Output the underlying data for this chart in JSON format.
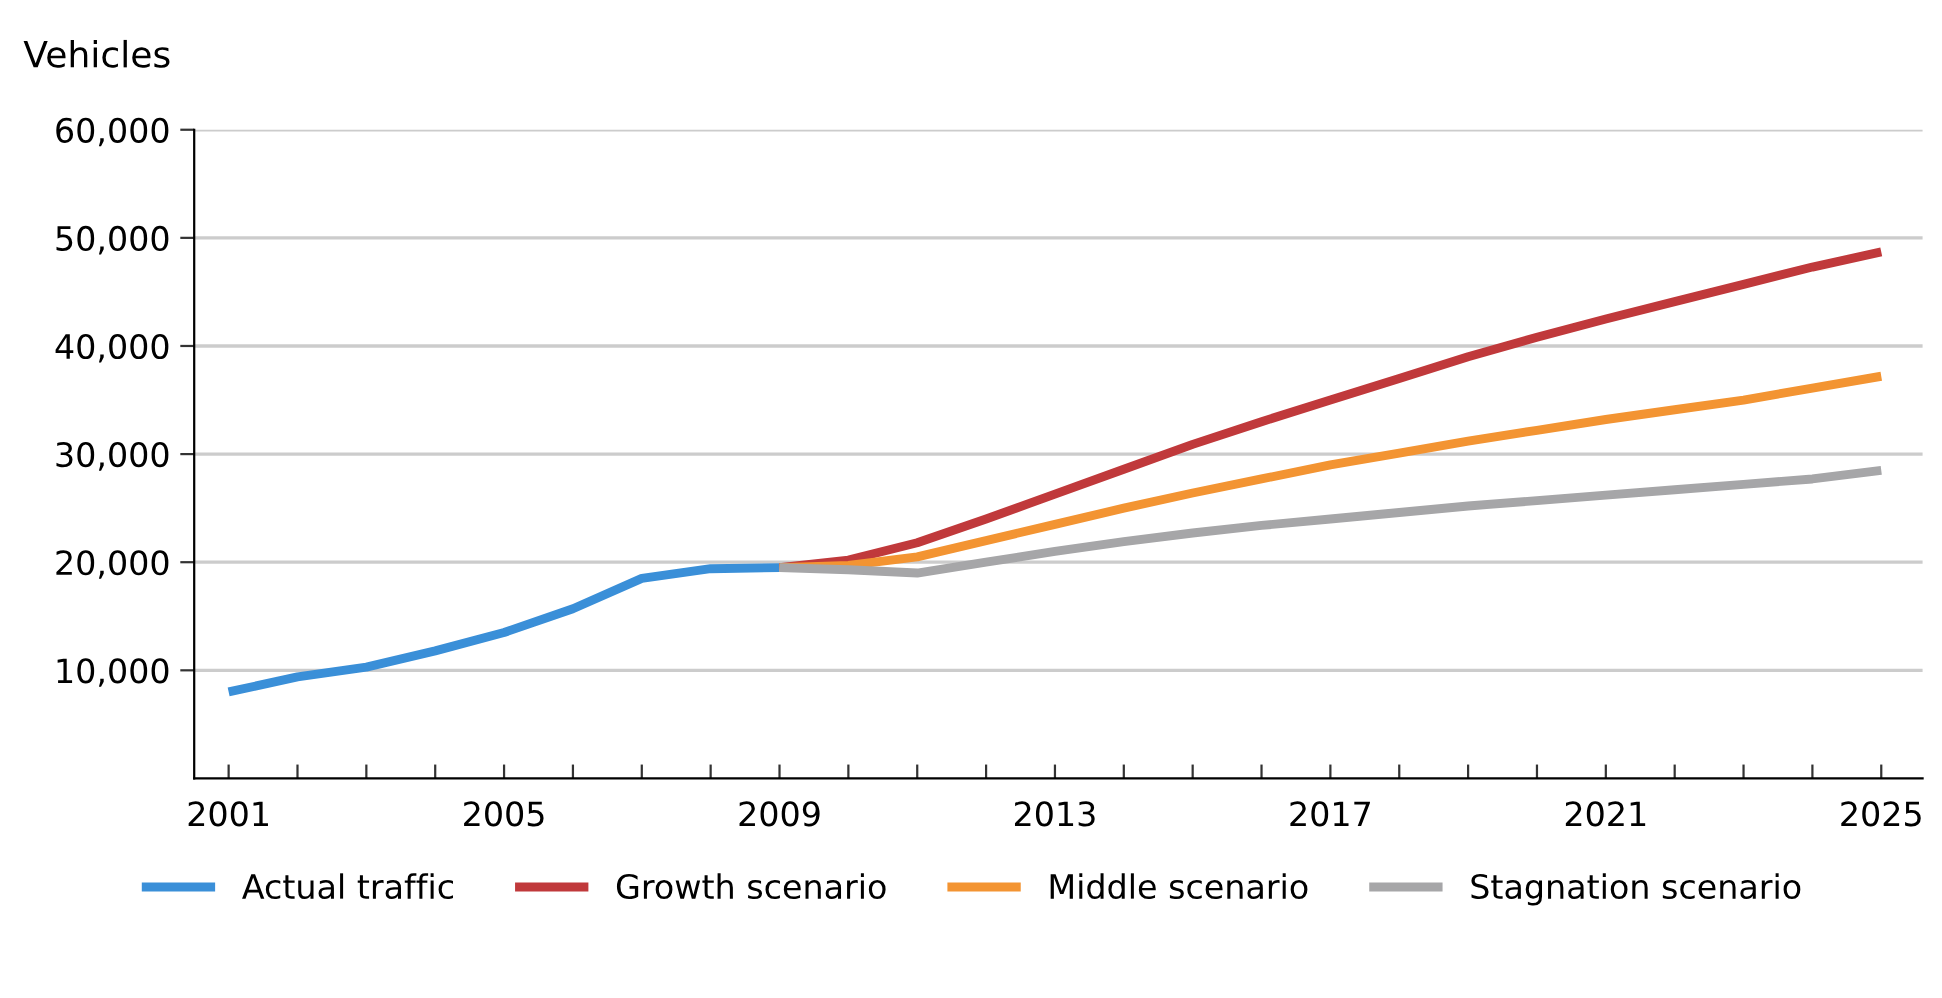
{
  "chart_data": {
    "type": "line",
    "ylabel": "Vehicles",
    "x": [
      2009,
      2010,
      2011,
      2012,
      2013,
      2014,
      2015,
      2016,
      2017,
      2018,
      2019,
      2020,
      2021,
      2022,
      2023,
      2024,
      2025
    ],
    "series": [
      {
        "name": "Actual traffic",
        "color": "#3a8fd8",
        "x": [
          2001,
          2002,
          2003,
          2004,
          2005,
          2006,
          2007,
          2008,
          2009
        ],
        "values": [
          8000,
          9400,
          10300,
          11800,
          13500,
          15700,
          18500,
          19400,
          19500
        ]
      },
      {
        "name": "Growth scenario",
        "color": "#c0393b",
        "values": [
          19500,
          20200,
          21800,
          24000,
          26300,
          28600,
          30900,
          33000,
          35000,
          37000,
          39000,
          40800,
          42500,
          44100,
          45700,
          47300,
          48700
        ]
      },
      {
        "name": "Middle scenario",
        "color": "#f39432",
        "values": [
          19500,
          19700,
          20500,
          22000,
          23500,
          25000,
          26400,
          27700,
          29000,
          30100,
          31200,
          32200,
          33200,
          34100,
          35000,
          36100,
          37200
        ]
      },
      {
        "name": "Stagnation scenario",
        "color": "#a6a6a8",
        "values": [
          19500,
          19300,
          19000,
          20000,
          21000,
          21900,
          22700,
          23400,
          24000,
          24600,
          25200,
          25700,
          26200,
          26700,
          27200,
          27700,
          28500
        ]
      }
    ],
    "xlim": [
      2000.5,
      2025.6
    ],
    "xticks": [
      2001,
      {
        "value": 2002,
        "label": null
      },
      {
        "value": 2003,
        "label": null
      },
      {
        "value": 2004,
        "label": null
      },
      2005,
      {
        "value": 2006,
        "label": null
      },
      {
        "value": 2007,
        "label": null
      },
      {
        "value": 2008,
        "label": null
      },
      2009,
      {
        "value": 2010,
        "label": null
      },
      {
        "value": 2011,
        "label": null
      },
      {
        "value": 2012,
        "label": null
      },
      2013,
      {
        "value": 2014,
        "label": null
      },
      {
        "value": 2015,
        "label": null
      },
      {
        "value": 2016,
        "label": null
      },
      2017,
      {
        "value": 2018,
        "label": null
      },
      {
        "value": 2019,
        "label": null
      },
      {
        "value": 2020,
        "label": null
      },
      2021,
      {
        "value": 2022,
        "label": null
      },
      {
        "value": 2023,
        "label": null
      },
      {
        "value": 2024,
        "label": null
      },
      2025
    ],
    "ylim": [
      0,
      60000
    ],
    "yticks": [
      {
        "value": 10000,
        "label": "10,000"
      },
      {
        "value": 20000,
        "label": "20,000"
      },
      {
        "value": 30000,
        "label": "30,000"
      },
      {
        "value": 40000,
        "label": "40,000"
      },
      {
        "value": 50000,
        "label": "50,000"
      },
      {
        "value": 60000,
        "label": "60,000"
      }
    ],
    "grid": "y",
    "legend": "bottom",
    "marker": "none",
    "line_style": "solid"
  }
}
